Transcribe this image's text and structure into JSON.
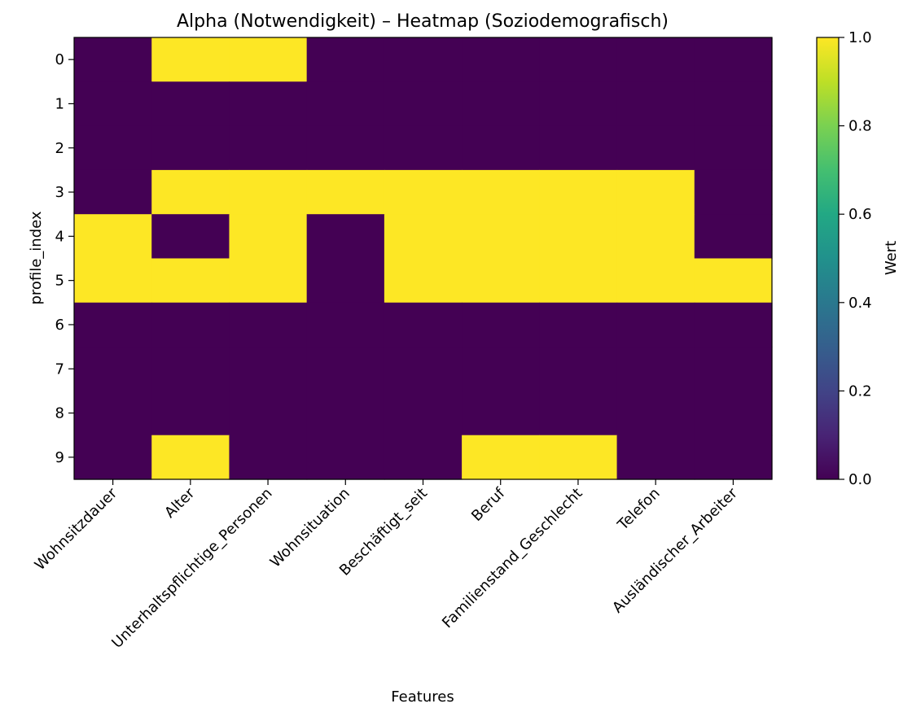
{
  "chart_data": {
    "type": "heatmap",
    "title": "Alpha (Notwendigkeit) – Heatmap (Soziodemografisch)",
    "xlabel": "Features",
    "ylabel": "profile_index",
    "x_categories": [
      "Wohnsitzdauer",
      "Alter",
      "Unterhaltspflichtige_Personen",
      "Wohnsituation",
      "Beschäftigt_seit",
      "Beruf",
      "Familienstand_Geschlecht",
      "Telefon",
      "Ausländischer_Arbeiter"
    ],
    "y_categories": [
      "0",
      "1",
      "2",
      "3",
      "4",
      "5",
      "6",
      "7",
      "8",
      "9"
    ],
    "values": [
      [
        0,
        1,
        1,
        0,
        0,
        0,
        0,
        0,
        0
      ],
      [
        0,
        0,
        0,
        0,
        0,
        0,
        0,
        0,
        0
      ],
      [
        0,
        0,
        0,
        0,
        0,
        0,
        0,
        0,
        0
      ],
      [
        0,
        1,
        1,
        1,
        1,
        1,
        1,
        1,
        0
      ],
      [
        1,
        0,
        1,
        0,
        1,
        1,
        1,
        1,
        0
      ],
      [
        1,
        1,
        1,
        0,
        1,
        1,
        1,
        1,
        1
      ],
      [
        0,
        0,
        0,
        0,
        0,
        0,
        0,
        0,
        0
      ],
      [
        0,
        0,
        0,
        0,
        0,
        0,
        0,
        0,
        0
      ],
      [
        0,
        0,
        0,
        0,
        0,
        0,
        0,
        0,
        0
      ],
      [
        0,
        1,
        0,
        0,
        0,
        1,
        1,
        0,
        0
      ]
    ],
    "colorbar": {
      "label": "Wert",
      "range": [
        0.0,
        1.0
      ],
      "ticks": [
        "0.0",
        "0.2",
        "0.4",
        "0.6",
        "0.8",
        "1.0"
      ],
      "colormap": "viridis"
    },
    "colors": {
      "low": "#440154",
      "high": "#fde725"
    }
  }
}
